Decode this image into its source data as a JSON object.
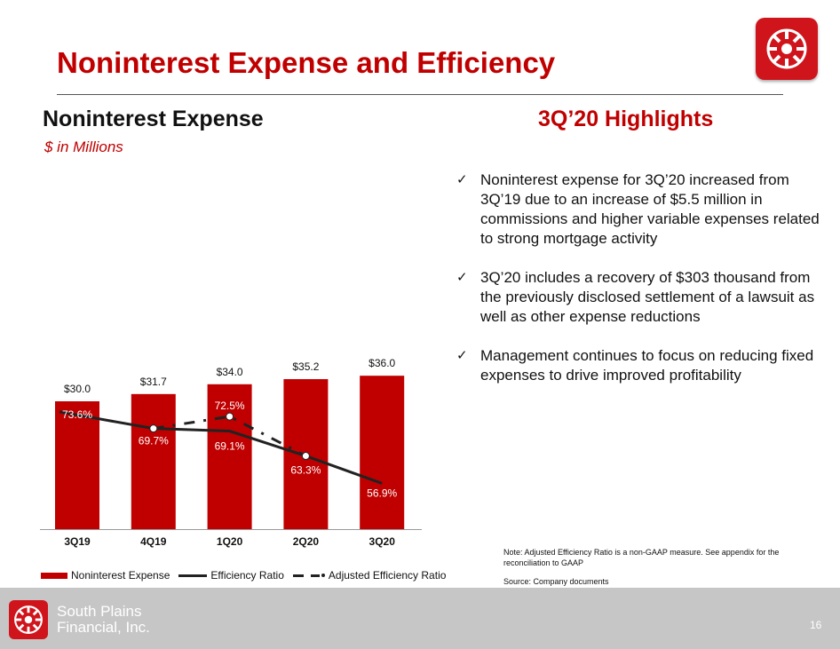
{
  "slide": {
    "title": "Noninterest Expense and Efficiency",
    "page_number": "16",
    "company_line1": "South Plains",
    "company_line2": "Financial, Inc."
  },
  "chart_header": {
    "title": "Noninterest Expense",
    "subtitle": "$ in Millions"
  },
  "highlights": {
    "title": "3Q’20 Highlights",
    "items": [
      "Noninterest expense for 3Q’20 increased from 3Q’19 due to an increase of $5.5 million in commissions and higher variable expenses related to strong mortgage activity",
      "3Q’20 includes a recovery of $303 thousand from the previously disclosed settlement of a lawsuit as well as other expense reductions",
      "Management continues to focus on reducing fixed expenses to drive improved profitability"
    ],
    "note": "Note: Adjusted Efficiency Ratio is a non-GAAP measure. See appendix for the reconciliation to GAAP",
    "source": "Source: Company documents"
  },
  "chart_data": {
    "type": "bar",
    "categories": [
      "3Q19",
      "4Q19",
      "1Q20",
      "2Q20",
      "3Q20"
    ],
    "series": [
      {
        "name": "Noninterest Expense",
        "type": "bar",
        "values": [
          30.0,
          31.7,
          34.0,
          35.2,
          36.0
        ],
        "labels": [
          "$30.0",
          "$31.7",
          "$34.0",
          "$35.2",
          "$36.0"
        ]
      },
      {
        "name": "Efficiency Ratio",
        "type": "line",
        "values": [
          73.6,
          69.7,
          69.1,
          63.3,
          56.9
        ],
        "labels": [
          "73.6%",
          "69.7%",
          "69.1%",
          "63.3%",
          "56.9%"
        ]
      },
      {
        "name": "Adjusted Efficiency Ratio",
        "type": "line",
        "values": [
          null,
          69.7,
          72.5,
          63.3,
          null
        ],
        "labels": [
          "",
          "",
          "72.5%",
          "",
          ""
        ]
      }
    ],
    "bar_ylim": [
      0,
      40
    ],
    "line_ylim": [
      0,
      100
    ],
    "legend_position": "bottom",
    "grid": false,
    "colors": {
      "bar": "#c00000",
      "line": "#222222",
      "bar_label_inside": "#ffffff"
    }
  }
}
